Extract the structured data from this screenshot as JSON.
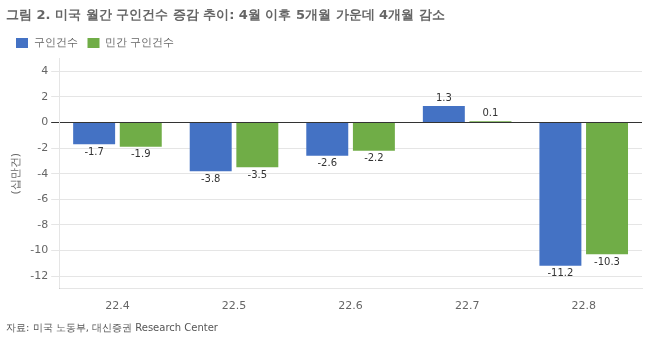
{
  "chart_data": {
    "type": "bar",
    "title": "그림 2. 미국 월간 구인건수 증감 추이: 4월 이후 5개월 가운데 4개월 감소",
    "ylabel": "(십만건)",
    "categories": [
      "22.4",
      "22.5",
      "22.6",
      "22.7",
      "22.8"
    ],
    "series": [
      {
        "name": "구인건수",
        "color": "#4472C4",
        "values": [
          -1.7,
          -3.8,
          -2.6,
          1.3,
          -11.2
        ]
      },
      {
        "name": "민간 구인건수",
        "color": "#70AD47",
        "values": [
          -1.9,
          -3.5,
          -2.2,
          0.1,
          -10.3
        ]
      }
    ],
    "ylim": [
      -13,
      5
    ],
    "yticks": [
      -12,
      -10,
      -8,
      -6,
      -4,
      -2,
      0,
      2,
      4
    ],
    "grid": true,
    "legend": "upper left",
    "data_labels": true,
    "annotations": [
      "자료: 미국 노동부, 대신증권 Research Center"
    ]
  }
}
